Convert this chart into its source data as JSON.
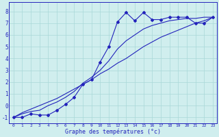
{
  "title": "",
  "xlabel": "Graphe des températures (°c)",
  "ylabel": "",
  "bg_color": "#d0eeee",
  "line_color": "#2222bb",
  "xlim": [
    -0.5,
    23.5
  ],
  "ylim": [
    -1.5,
    8.8
  ],
  "yticks": [
    -1,
    0,
    1,
    2,
    3,
    4,
    5,
    6,
    7,
    8
  ],
  "xticks": [
    0,
    1,
    2,
    3,
    4,
    5,
    6,
    7,
    8,
    9,
    10,
    11,
    12,
    13,
    14,
    15,
    16,
    17,
    18,
    19,
    20,
    21,
    22,
    23
  ],
  "hours": [
    0,
    1,
    2,
    3,
    4,
    5,
    6,
    7,
    8,
    9,
    10,
    11,
    12,
    13,
    14,
    15,
    16,
    17,
    18,
    19,
    20,
    21,
    22,
    23
  ],
  "temp1": [
    -1.0,
    -1.0,
    -0.7,
    -0.8,
    -0.8,
    -0.4,
    0.1,
    0.7,
    1.8,
    2.2,
    3.7,
    5.0,
    7.1,
    7.9,
    7.2,
    7.9,
    7.3,
    7.3,
    7.5,
    7.5,
    7.5,
    7.0,
    7.0,
    7.5
  ],
  "temp2": [
    -1.0,
    -0.7,
    -0.5,
    -0.4,
    0.0,
    0.3,
    0.7,
    1.2,
    1.9,
    2.4,
    3.0,
    3.8,
    4.8,
    5.5,
    6.0,
    6.5,
    6.8,
    7.0,
    7.2,
    7.3,
    7.4,
    7.4,
    7.5,
    7.5
  ],
  "temp3": [
    -1.0,
    -0.6,
    -0.3,
    0.0,
    0.3,
    0.6,
    1.0,
    1.4,
    1.8,
    2.2,
    2.7,
    3.1,
    3.6,
    4.0,
    4.5,
    5.0,
    5.4,
    5.8,
    6.1,
    6.4,
    6.7,
    7.0,
    7.2,
    7.5
  ]
}
